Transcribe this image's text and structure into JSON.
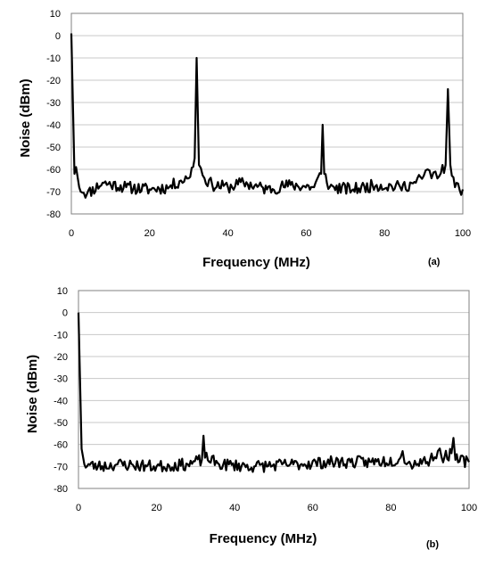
{
  "chart_data": [
    {
      "type": "line",
      "panel_label": "(a)",
      "xlabel": "Frequency (MHz)",
      "ylabel": "Noise (dBm)",
      "xlim": [
        0,
        100
      ],
      "ylim": [
        -80,
        10
      ],
      "xticks": [
        0,
        20,
        40,
        60,
        80,
        100
      ],
      "yticks": [
        10,
        0,
        -10,
        -20,
        -30,
        -40,
        -50,
        -60,
        -70,
        -80
      ],
      "grid": true,
      "noise_floor_dbm": -68,
      "series": [
        {
          "values": [
            [
              0,
              1
            ],
            [
              0.8,
              -62
            ],
            [
              1.2,
              -59
            ],
            [
              2,
              -68
            ],
            [
              4,
              -71
            ],
            [
              8,
              -66
            ],
            [
              14,
              -68
            ],
            [
              20,
              -69
            ],
            [
              25,
              -68
            ],
            [
              28,
              -65
            ],
            [
              30,
              -64
            ],
            [
              31.5,
              -55
            ],
            [
              32,
              -10
            ],
            [
              32.6,
              -58
            ],
            [
              34,
              -64
            ],
            [
              36,
              -67
            ],
            [
              40,
              -68
            ],
            [
              44,
              -66
            ],
            [
              50,
              -69
            ],
            [
              56,
              -67
            ],
            [
              62,
              -68
            ],
            [
              63.8,
              -62
            ],
            [
              64.2,
              -40
            ],
            [
              64.6,
              -62
            ],
            [
              66,
              -68
            ],
            [
              72,
              -69
            ],
            [
              78,
              -67
            ],
            [
              84,
              -68
            ],
            [
              88,
              -66
            ],
            [
              90,
              -63
            ],
            [
              91,
              -60
            ],
            [
              92,
              -64
            ],
            [
              93,
              -61
            ],
            [
              94,
              -63
            ],
            [
              95.6,
              -58
            ],
            [
              96.2,
              -24
            ],
            [
              96.8,
              -58
            ],
            [
              98,
              -68
            ],
            [
              100,
              -69
            ]
          ]
        }
      ]
    },
    {
      "type": "line",
      "panel_label": "(b)",
      "xlabel": "Frequency (MHz)",
      "ylabel": "Noise (dBm)",
      "xlim": [
        0,
        100
      ],
      "ylim": [
        -80,
        10
      ],
      "xticks": [
        0,
        20,
        40,
        60,
        80,
        100
      ],
      "yticks": [
        10,
        0,
        -10,
        -20,
        -30,
        -40,
        -50,
        -60,
        -70,
        -80
      ],
      "grid": true,
      "noise_floor_dbm": -69,
      "series": [
        {
          "values": [
            [
              0,
              0
            ],
            [
              0.8,
              -62
            ],
            [
              1.5,
              -69
            ],
            [
              5,
              -70
            ],
            [
              10,
              -69
            ],
            [
              20,
              -70
            ],
            [
              28,
              -69
            ],
            [
              31.6,
              -67
            ],
            [
              32,
              -56
            ],
            [
              32.4,
              -66
            ],
            [
              36,
              -69
            ],
            [
              45,
              -70
            ],
            [
              55,
              -69
            ],
            [
              65,
              -68
            ],
            [
              75,
              -68
            ],
            [
              82,
              -67
            ],
            [
              83,
              -63
            ],
            [
              84,
              -69
            ],
            [
              90,
              -67
            ],
            [
              92,
              -63
            ],
            [
              93,
              -66
            ],
            [
              95.5,
              -64
            ],
            [
              96,
              -57
            ],
            [
              96.5,
              -67
            ],
            [
              100,
              -68
            ]
          ]
        }
      ]
    }
  ]
}
